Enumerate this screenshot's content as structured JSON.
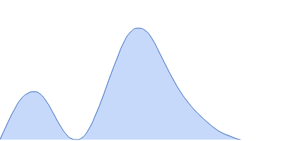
{
  "chart_data": {
    "type": "area",
    "x": [
      0,
      10,
      20,
      30,
      40,
      48,
      55,
      65,
      75,
      85,
      95,
      102,
      108,
      115,
      125,
      135,
      145,
      155,
      165,
      175,
      185,
      195,
      205,
      215,
      225,
      235,
      245,
      255,
      265,
      275,
      285,
      295,
      305,
      315,
      325,
      335,
      340
    ],
    "values": [
      0,
      22,
      42,
      58,
      66,
      68,
      66,
      55,
      38,
      20,
      6,
      1,
      0,
      2,
      14,
      35,
      60,
      88,
      114,
      138,
      153,
      158,
      155,
      143,
      124,
      104,
      85,
      68,
      54,
      42,
      32,
      23,
      15,
      9,
      5,
      1,
      0
    ],
    "color": "#c6d9fb",
    "xlim": [
      0,
      340
    ],
    "ylim": [
      0,
      160
    ],
    "grid": false,
    "tick_labels": false
  }
}
